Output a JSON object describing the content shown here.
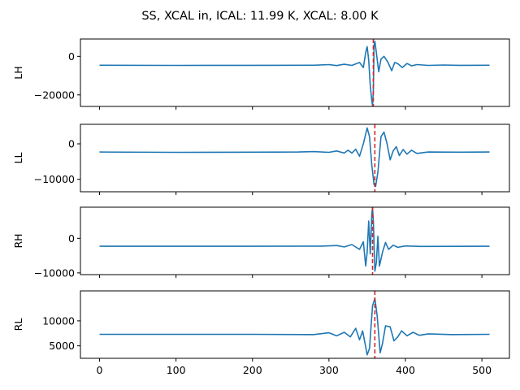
{
  "chart_data": {
    "type": "line",
    "title": "SS, XCAL in, ICAL: 11.99 K, XCAL: 8.00 K",
    "xlim": [
      -25,
      536
    ],
    "x_ticks": [
      "0",
      "100",
      "200",
      "300",
      "400",
      "500"
    ],
    "x_tick_values": [
      0,
      100,
      200,
      300,
      400,
      500
    ],
    "colors": {
      "series": "#1f77b4",
      "marker": "#d62728"
    },
    "panels": [
      {
        "ylabel": "LH",
        "ylim": [
          -26000,
          9000
        ],
        "yticks": [
          {
            "label": "0",
            "value": 0
          },
          {
            "label": "−20000",
            "value": -20000
          }
        ],
        "marker_x": 358,
        "baseline": -4600,
        "points": [
          [
            0,
            -4600
          ],
          [
            100,
            -4700
          ],
          [
            200,
            -4650
          ],
          [
            280,
            -4600
          ],
          [
            300,
            -4300
          ],
          [
            310,
            -4800
          ],
          [
            320,
            -4100
          ],
          [
            330,
            -4700
          ],
          [
            340,
            -3200
          ],
          [
            345,
            -5800
          ],
          [
            348,
            2000
          ],
          [
            350,
            5000
          ],
          [
            352,
            -2000
          ],
          [
            354,
            -15000
          ],
          [
            356,
            -23000
          ],
          [
            357,
            -25500
          ],
          [
            358,
            -18000
          ],
          [
            359,
            6000
          ],
          [
            360,
            7800
          ],
          [
            362,
            2000
          ],
          [
            365,
            -8000
          ],
          [
            368,
            -1500
          ],
          [
            372,
            0
          ],
          [
            377,
            -3000
          ],
          [
            382,
            -7500
          ],
          [
            386,
            -3200
          ],
          [
            390,
            -3800
          ],
          [
            396,
            -5800
          ],
          [
            402,
            -3700
          ],
          [
            408,
            -4900
          ],
          [
            415,
            -4300
          ],
          [
            430,
            -4700
          ],
          [
            450,
            -4500
          ],
          [
            470,
            -4650
          ],
          [
            510,
            -4600
          ]
        ]
      },
      {
        "ylabel": "LL",
        "ylim": [
          -13500,
          5500
        ],
        "yticks": [
          {
            "label": "0",
            "value": 0
          },
          {
            "label": "−10000",
            "value": -10000
          }
        ],
        "marker_x": 360,
        "baseline": -2300,
        "points": [
          [
            0,
            -2300
          ],
          [
            100,
            -2400
          ],
          [
            200,
            -2350
          ],
          [
            260,
            -2300
          ],
          [
            280,
            -2200
          ],
          [
            300,
            -2400
          ],
          [
            310,
            -2000
          ],
          [
            320,
            -2600
          ],
          [
            325,
            -1800
          ],
          [
            330,
            -2600
          ],
          [
            335,
            -1500
          ],
          [
            340,
            -3500
          ],
          [
            345,
            0
          ],
          [
            350,
            4500
          ],
          [
            353,
            2000
          ],
          [
            356,
            -6000
          ],
          [
            359,
            -11500
          ],
          [
            361,
            -12000
          ],
          [
            364,
            -8000
          ],
          [
            368,
            2000
          ],
          [
            372,
            3300
          ],
          [
            376,
            0
          ],
          [
            380,
            -4500
          ],
          [
            384,
            -2000
          ],
          [
            388,
            -800
          ],
          [
            392,
            -3300
          ],
          [
            397,
            -1600
          ],
          [
            402,
            -2900
          ],
          [
            408,
            -1800
          ],
          [
            415,
            -2700
          ],
          [
            430,
            -2300
          ],
          [
            470,
            -2350
          ],
          [
            510,
            -2300
          ]
        ]
      },
      {
        "ylabel": "RH",
        "ylim": [
          -10500,
          9000
        ],
        "yticks": [
          {
            "label": "0",
            "value": 0
          },
          {
            "label": "−10000",
            "value": -10000
          }
        ],
        "marker_x": 357,
        "baseline": -2300,
        "points": [
          [
            0,
            -2300
          ],
          [
            100,
            -2300
          ],
          [
            200,
            -2300
          ],
          [
            290,
            -2250
          ],
          [
            310,
            -2100
          ],
          [
            320,
            -2500
          ],
          [
            330,
            -1800
          ],
          [
            340,
            -3200
          ],
          [
            345,
            -1000
          ],
          [
            348,
            -8000
          ],
          [
            350,
            -4000
          ],
          [
            352,
            5000
          ],
          [
            354,
            -4500
          ],
          [
            356,
            7000
          ],
          [
            357,
            8800
          ],
          [
            358,
            5000
          ],
          [
            360,
            -9500
          ],
          [
            362,
            -7000
          ],
          [
            364,
            600
          ],
          [
            366,
            -8000
          ],
          [
            370,
            -4000
          ],
          [
            374,
            -1200
          ],
          [
            378,
            -3200
          ],
          [
            384,
            -2000
          ],
          [
            390,
            -2600
          ],
          [
            400,
            -2200
          ],
          [
            420,
            -2350
          ],
          [
            510,
            -2300
          ]
        ]
      },
      {
        "ylabel": "RL",
        "ylim": [
          2500,
          16000
        ],
        "yticks": [
          {
            "label": "10000",
            "value": 10000
          },
          {
            "label": "5000",
            "value": 5000
          }
        ],
        "marker_x": 360,
        "baseline": 7300,
        "points": [
          [
            0,
            7300
          ],
          [
            100,
            7300
          ],
          [
            200,
            7300
          ],
          [
            280,
            7250
          ],
          [
            300,
            7600
          ],
          [
            310,
            7000
          ],
          [
            320,
            7700
          ],
          [
            328,
            6800
          ],
          [
            335,
            8500
          ],
          [
            340,
            6200
          ],
          [
            344,
            8000
          ],
          [
            350,
            3200
          ],
          [
            353,
            4500
          ],
          [
            357,
            13000
          ],
          [
            360,
            14500
          ],
          [
            363,
            11000
          ],
          [
            367,
            3600
          ],
          [
            370,
            5500
          ],
          [
            374,
            9000
          ],
          [
            380,
            8800
          ],
          [
            385,
            6000
          ],
          [
            390,
            6800
          ],
          [
            395,
            8000
          ],
          [
            402,
            7000
          ],
          [
            410,
            7700
          ],
          [
            418,
            7100
          ],
          [
            430,
            7400
          ],
          [
            460,
            7250
          ],
          [
            510,
            7300
          ]
        ]
      }
    ]
  }
}
